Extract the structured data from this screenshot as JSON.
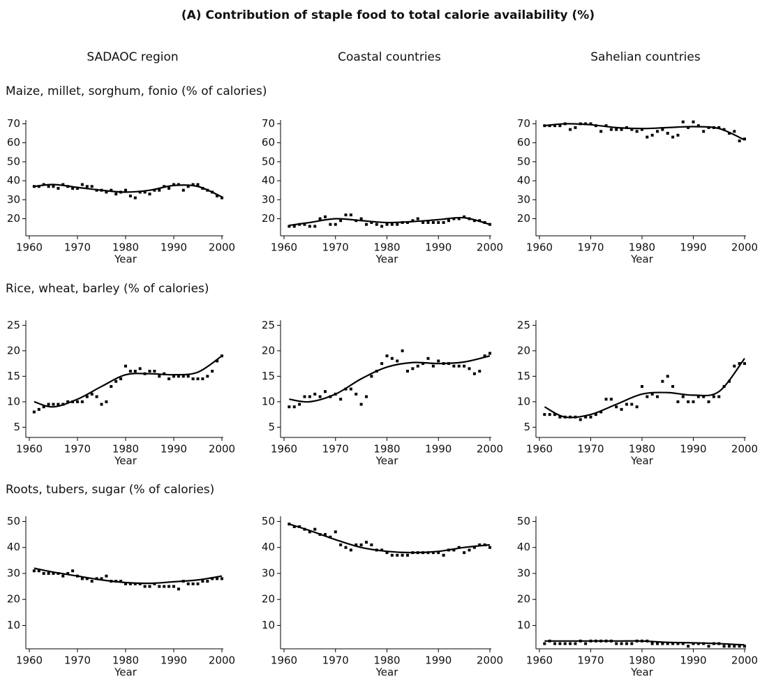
{
  "title": "(A) Contribution of staple food to total calorie availability (%)",
  "columns": [
    "SADAOC region",
    "Coastal countries",
    "Sahelian countries"
  ],
  "rows": [
    "Maize, millet, sorghum, fonio (% of calories)",
    "Rice, wheat, barley (% of calories)",
    "Roots, tubers, sugar (% of calories)"
  ],
  "chart_data": [
    {
      "type": "scatter",
      "x_label": "Year",
      "color": "#000000",
      "xlim": [
        1960,
        2000
      ],
      "xticks": [
        1960,
        1970,
        1980,
        1990,
        2000
      ],
      "ylim": [
        11,
        72
      ],
      "yticks": [
        20,
        30,
        40,
        50,
        60,
        70
      ],
      "x": [
        1961,
        1962,
        1963,
        1964,
        1965,
        1966,
        1967,
        1968,
        1969,
        1970,
        1971,
        1972,
        1973,
        1974,
        1975,
        1976,
        1977,
        1978,
        1979,
        1980,
        1981,
        1982,
        1983,
        1984,
        1985,
        1986,
        1987,
        1988,
        1989,
        1990,
        1991,
        1992,
        1993,
        1994,
        1995,
        1996,
        1997,
        1998,
        1999,
        2000
      ],
      "values": [
        37,
        37,
        38,
        37,
        37,
        36,
        38,
        37,
        36,
        36,
        38,
        37,
        37,
        35,
        35,
        34,
        35,
        33,
        34,
        35,
        32,
        31,
        34,
        34,
        33,
        35,
        35,
        37,
        36,
        38,
        38,
        35,
        37,
        38,
        38,
        36,
        35,
        34,
        32,
        31
      ],
      "fit": {
        "x": [
          1961,
          1965,
          1970,
          1975,
          1980,
          1985,
          1990,
          1995,
          2000
        ],
        "values": [
          37,
          38,
          36.5,
          35,
          34,
          35,
          37.5,
          37,
          31.5
        ]
      }
    },
    {
      "type": "scatter",
      "x_label": "Year",
      "color": "#000000",
      "xlim": [
        1960,
        2000
      ],
      "xticks": [
        1960,
        1970,
        1980,
        1990,
        2000
      ],
      "ylim": [
        11,
        72
      ],
      "yticks": [
        20,
        30,
        40,
        50,
        60,
        70
      ],
      "x": [
        1961,
        1962,
        1963,
        1964,
        1965,
        1966,
        1967,
        1968,
        1969,
        1970,
        1971,
        1972,
        1973,
        1974,
        1975,
        1976,
        1977,
        1978,
        1979,
        1980,
        1981,
        1982,
        1983,
        1984,
        1985,
        1986,
        1987,
        1988,
        1989,
        1990,
        1991,
        1992,
        1993,
        1994,
        1995,
        1996,
        1997,
        1998,
        1999,
        2000
      ],
      "values": [
        16,
        16,
        17,
        17,
        16,
        16,
        20,
        21,
        17,
        17,
        19,
        22,
        22,
        19,
        20,
        17,
        18,
        17,
        16,
        17,
        17,
        17,
        18,
        18,
        19,
        20,
        18,
        18,
        18,
        18,
        18,
        19,
        20,
        20,
        21,
        20,
        19,
        19,
        18,
        17
      ],
      "fit": {
        "x": [
          1961,
          1965,
          1970,
          1975,
          1980,
          1985,
          1990,
          1995,
          2000
        ],
        "values": [
          16.5,
          18,
          20,
          19,
          18,
          18.5,
          19.5,
          20.5,
          17
        ]
      }
    },
    {
      "type": "scatter",
      "x_label": "Year",
      "color": "#000000",
      "xlim": [
        1960,
        2000
      ],
      "xticks": [
        1960,
        1970,
        1980,
        1990,
        2000
      ],
      "ylim": [
        11,
        72
      ],
      "yticks": [
        20,
        30,
        40,
        50,
        60,
        70
      ],
      "x": [
        1961,
        1962,
        1963,
        1964,
        1965,
        1966,
        1967,
        1968,
        1969,
        1970,
        1971,
        1972,
        1973,
        1974,
        1975,
        1976,
        1977,
        1978,
        1979,
        1980,
        1981,
        1982,
        1983,
        1984,
        1985,
        1986,
        1987,
        1988,
        1989,
        1990,
        1991,
        1992,
        1993,
        1994,
        1995,
        1996,
        1997,
        1998,
        1999,
        2000
      ],
      "values": [
        69,
        69,
        69,
        69,
        70,
        67,
        68,
        70,
        70,
        70,
        69,
        66,
        69,
        67,
        67,
        67,
        68,
        67,
        66,
        67,
        63,
        64,
        66,
        67,
        65,
        63,
        64,
        71,
        68,
        71,
        69,
        66,
        68,
        68,
        68,
        67,
        65,
        66,
        61,
        62
      ],
      "fit": {
        "x": [
          1961,
          1965,
          1970,
          1975,
          1980,
          1985,
          1990,
          1995,
          2000
        ],
        "values": [
          69,
          70,
          69.5,
          68,
          67.5,
          68,
          68.5,
          67.5,
          61.5
        ]
      }
    },
    {
      "type": "scatter",
      "x_label": "Year",
      "color": "#000000",
      "xlim": [
        1960,
        2000
      ],
      "xticks": [
        1960,
        1970,
        1980,
        1990,
        2000
      ],
      "ylim": [
        3,
        26
      ],
      "yticks": [
        5,
        10,
        15,
        20,
        25
      ],
      "x": [
        1961,
        1962,
        1963,
        1964,
        1965,
        1966,
        1967,
        1968,
        1969,
        1970,
        1971,
        1972,
        1973,
        1974,
        1975,
        1976,
        1977,
        1978,
        1979,
        1980,
        1981,
        1982,
        1983,
        1984,
        1985,
        1986,
        1987,
        1988,
        1989,
        1990,
        1991,
        1992,
        1993,
        1994,
        1995,
        1996,
        1997,
        1998,
        1999,
        2000
      ],
      "values": [
        8,
        8.5,
        9,
        9.5,
        9.5,
        9.5,
        9.5,
        10,
        10,
        10,
        10,
        11,
        11.5,
        11,
        9.5,
        10,
        13,
        14,
        14.5,
        17,
        16,
        16,
        16.5,
        15.5,
        16,
        16,
        15,
        15.5,
        14.5,
        15,
        15,
        15,
        15,
        14.5,
        14.5,
        14.5,
        15,
        16,
        18,
        19
      ],
      "fit": {
        "x": [
          1961,
          1965,
          1970,
          1975,
          1980,
          1985,
          1990,
          1995,
          2000
        ],
        "values": [
          10,
          9,
          10.5,
          13,
          15.3,
          15.5,
          15.3,
          15.8,
          19
        ]
      }
    },
    {
      "type": "scatter",
      "x_label": "Year",
      "color": "#000000",
      "xlim": [
        1960,
        2000
      ],
      "xticks": [
        1960,
        1970,
        1980,
        1990,
        2000
      ],
      "ylim": [
        3,
        26
      ],
      "yticks": [
        5,
        10,
        15,
        20,
        25
      ],
      "x": [
        1961,
        1962,
        1963,
        1964,
        1965,
        1966,
        1967,
        1968,
        1969,
        1970,
        1971,
        1972,
        1973,
        1974,
        1975,
        1976,
        1977,
        1978,
        1979,
        1980,
        1981,
        1982,
        1983,
        1984,
        1985,
        1986,
        1987,
        1988,
        1989,
        1990,
        1991,
        1992,
        1993,
        1994,
        1995,
        1996,
        1997,
        1998,
        1999,
        2000
      ],
      "values": [
        9,
        9,
        9.5,
        11,
        11,
        11.5,
        11,
        12,
        11,
        11.5,
        10.5,
        12.5,
        12.5,
        11.5,
        9.5,
        11,
        15,
        16,
        17.5,
        19,
        18.5,
        18,
        20,
        16,
        16.5,
        17,
        17.5,
        18.5,
        17,
        18,
        17.5,
        17.5,
        17,
        17,
        17,
        16.5,
        15.5,
        16,
        19,
        19.5
      ],
      "fit": {
        "x": [
          1961,
          1965,
          1970,
          1975,
          1980,
          1985,
          1990,
          1995,
          2000
        ],
        "values": [
          10.5,
          10,
          11.5,
          14.5,
          16.8,
          17.7,
          17.5,
          17.8,
          19
        ]
      }
    },
    {
      "type": "scatter",
      "x_label": "Year",
      "color": "#000000",
      "xlim": [
        1960,
        2000
      ],
      "xticks": [
        1960,
        1970,
        1980,
        1990,
        2000
      ],
      "ylim": [
        3,
        26
      ],
      "yticks": [
        5,
        10,
        15,
        20,
        25
      ],
      "x": [
        1961,
        1962,
        1963,
        1964,
        1965,
        1966,
        1967,
        1968,
        1969,
        1970,
        1971,
        1972,
        1973,
        1974,
        1975,
        1976,
        1977,
        1978,
        1979,
        1980,
        1981,
        1982,
        1983,
        1984,
        1985,
        1986,
        1987,
        1988,
        1989,
        1990,
        1991,
        1992,
        1993,
        1994,
        1995,
        1996,
        1997,
        1998,
        1999,
        2000
      ],
      "values": [
        7.5,
        7.5,
        7.5,
        7,
        7,
        7,
        7,
        6.5,
        7,
        7,
        7.5,
        8,
        10.5,
        10.5,
        9,
        8.5,
        9.5,
        9.5,
        9,
        13,
        11,
        11.5,
        11,
        14,
        15,
        13,
        10,
        11,
        10,
        10,
        11,
        11,
        10,
        11,
        11,
        13,
        14,
        17,
        17.5,
        17.5
      ],
      "fit": {
        "x": [
          1961,
          1965,
          1970,
          1975,
          1980,
          1985,
          1990,
          1995,
          2000
        ],
        "values": [
          9,
          7,
          7.5,
          9.5,
          11.5,
          11.8,
          11.3,
          12,
          18.5
        ]
      }
    },
    {
      "type": "scatter",
      "x_label": "Year",
      "color": "#000000",
      "xlim": [
        1960,
        2000
      ],
      "xticks": [
        1960,
        1970,
        1980,
        1990,
        2000
      ],
      "ylim": [
        1,
        52
      ],
      "yticks": [
        10,
        20,
        30,
        40,
        50
      ],
      "x": [
        1961,
        1962,
        1963,
        1964,
        1965,
        1966,
        1967,
        1968,
        1969,
        1970,
        1971,
        1972,
        1973,
        1974,
        1975,
        1976,
        1977,
        1978,
        1979,
        1980,
        1981,
        1982,
        1983,
        1984,
        1985,
        1986,
        1987,
        1988,
        1989,
        1990,
        1991,
        1992,
        1993,
        1994,
        1995,
        1996,
        1997,
        1998,
        1999,
        2000
      ],
      "values": [
        31,
        31,
        30,
        30,
        30,
        30,
        29,
        30,
        31,
        29,
        28,
        28,
        27,
        28,
        28,
        29,
        27,
        27,
        27,
        26,
        26,
        26,
        26,
        25,
        25,
        26,
        25,
        25,
        25,
        25,
        24,
        27,
        26,
        26,
        26,
        27,
        27,
        28,
        28,
        28
      ],
      "fit": {
        "x": [
          1961,
          1965,
          1970,
          1975,
          1980,
          1985,
          1990,
          1995,
          2000
        ],
        "values": [
          32,
          30.5,
          29,
          27.5,
          26.5,
          26.2,
          26.8,
          27.5,
          29
        ]
      }
    },
    {
      "type": "scatter",
      "x_label": "Year",
      "color": "#000000",
      "xlim": [
        1960,
        2000
      ],
      "xticks": [
        1960,
        1970,
        1980,
        1990,
        2000
      ],
      "ylim": [
        1,
        52
      ],
      "yticks": [
        10,
        20,
        30,
        40,
        50
      ],
      "x": [
        1961,
        1962,
        1963,
        1964,
        1965,
        1966,
        1967,
        1968,
        1969,
        1970,
        1971,
        1972,
        1973,
        1974,
        1975,
        1976,
        1977,
        1978,
        1979,
        1980,
        1981,
        1982,
        1983,
        1984,
        1985,
        1986,
        1987,
        1988,
        1989,
        1990,
        1991,
        1992,
        1993,
        1994,
        1995,
        1996,
        1997,
        1998,
        1999,
        2000
      ],
      "values": [
        49,
        48,
        48,
        47,
        46,
        47,
        45,
        45,
        44,
        46,
        41,
        40,
        39,
        41,
        41,
        42,
        41,
        39,
        39,
        38,
        37,
        37,
        37,
        37,
        38,
        38,
        38,
        38,
        38,
        38,
        37,
        39,
        39,
        40,
        38,
        39,
        40,
        41,
        41,
        40
      ],
      "fit": {
        "x": [
          1961,
          1965,
          1970,
          1975,
          1980,
          1985,
          1990,
          1995,
          2000
        ],
        "values": [
          49,
          46.5,
          43,
          40,
          38.5,
          38,
          38.5,
          40,
          41
        ]
      }
    },
    {
      "type": "scatter",
      "x_label": "Year",
      "color": "#000000",
      "xlim": [
        1960,
        2000
      ],
      "xticks": [
        1960,
        1970,
        1980,
        1990,
        2000
      ],
      "ylim": [
        1,
        52
      ],
      "yticks": [
        10,
        20,
        30,
        40,
        50
      ],
      "x": [
        1961,
        1962,
        1963,
        1964,
        1965,
        1966,
        1967,
        1968,
        1969,
        1970,
        1971,
        1972,
        1973,
        1974,
        1975,
        1976,
        1977,
        1978,
        1979,
        1980,
        1981,
        1982,
        1983,
        1984,
        1985,
        1986,
        1987,
        1988,
        1989,
        1990,
        1991,
        1992,
        1993,
        1994,
        1995,
        1996,
        1997,
        1998,
        1999,
        2000
      ],
      "values": [
        3,
        4,
        3,
        3,
        3,
        3,
        3,
        4,
        3,
        4,
        4,
        4,
        4,
        4,
        3,
        3,
        3,
        3,
        4,
        4,
        4,
        3,
        3,
        3,
        3,
        3,
        3,
        3,
        2,
        3,
        3,
        3,
        2,
        3,
        3,
        2,
        2,
        2,
        2,
        2
      ],
      "fit": {
        "x": [
          1961,
          1965,
          1970,
          1975,
          1980,
          1985,
          1990,
          1995,
          2000
        ],
        "values": [
          4,
          4,
          4,
          4,
          4,
          3.5,
          3.3,
          3,
          2.5
        ]
      }
    }
  ]
}
